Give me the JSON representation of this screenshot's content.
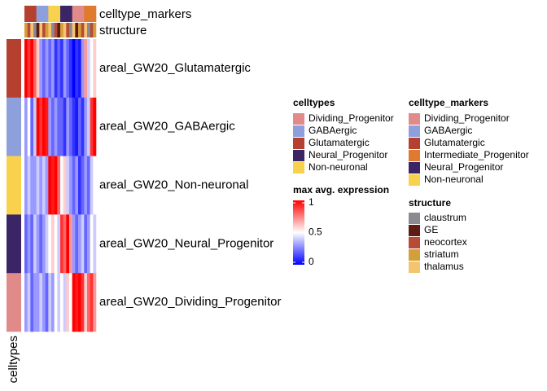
{
  "chart_data": {
    "type": "heatmap",
    "rows": [
      "areal_GW20_Glutamatergic",
      "areal_GW20_GABAergic",
      "areal_GW20_Non-neuronal",
      "areal_GW20_Neural_Progenitor",
      "areal_GW20_Dividing_Progenitor"
    ],
    "row_celltype_index": [
      2,
      1,
      4,
      3,
      0
    ],
    "row_annotation_title": "celltypes",
    "top_annotations": [
      "celltype_markers",
      "structure"
    ],
    "column_marker_index": [
      2,
      2,
      2,
      2,
      1,
      1,
      1,
      1,
      5,
      5,
      5,
      5,
      4,
      4,
      4,
      4,
      0,
      0,
      0,
      0,
      3,
      3,
      3,
      3
    ],
    "column_structure_index": [
      3,
      2,
      4,
      0,
      1,
      4,
      2,
      3,
      4,
      0,
      2,
      1,
      3,
      4,
      2,
      0,
      4,
      1,
      3,
      2,
      4,
      0,
      2,
      3
    ],
    "values": [
      [
        1,
        0.9,
        1,
        0.8,
        0.6,
        0.3,
        0.2,
        0.3,
        0.2,
        0.3,
        0.1,
        0.2,
        0.1,
        0.3,
        0.2,
        0.1,
        0,
        0.1,
        0.05,
        0.3,
        0.7,
        0.4,
        0.5,
        0.6
      ],
      [
        0.3,
        0.5,
        0.2,
        0.4,
        1,
        0.9,
        1,
        0.95,
        0.3,
        0.2,
        0.3,
        0.2,
        0.2,
        0.1,
        0.3,
        0.2,
        0.1,
        0.05,
        0.2,
        0.1,
        0.3,
        0.4,
        0.9,
        1
      ],
      [
        0.3,
        0.4,
        0.3,
        0.3,
        0.4,
        0.3,
        0.4,
        0.3,
        1,
        0.95,
        1,
        0.8,
        0.5,
        0.6,
        0.4,
        0.3,
        0.2,
        0.3,
        0.1,
        0.2,
        0.3,
        0.2,
        0.4,
        0.5
      ],
      [
        0.2,
        0.3,
        0.2,
        0.4,
        0.3,
        0.2,
        0.3,
        0.4,
        0.5,
        0.6,
        0.5,
        0.4,
        0.9,
        0.8,
        1,
        0.7,
        0.3,
        0.2,
        0.3,
        0.4,
        0.2,
        0.3,
        0.5,
        0.4
      ],
      [
        0.3,
        0.4,
        0.2,
        0.3,
        0.3,
        0.4,
        0.3,
        0.2,
        0.4,
        0.3,
        0.5,
        0.4,
        0.5,
        0.4,
        0.6,
        0.5,
        1,
        0.95,
        1,
        0.9,
        0.6,
        0.8,
        0.9,
        0.7
      ]
    ],
    "legends": {
      "celltypes": {
        "title": "celltypes",
        "labels": [
          "Dividing_Progenitor",
          "GABAergic",
          "Glutamatergic",
          "Neural_Progenitor",
          "Non-neuronal"
        ],
        "colors": [
          "#e08a8a",
          "#8da0dc",
          "#b5402f",
          "#3a2567",
          "#f8d24c"
        ]
      },
      "markers": {
        "title": "celltype_markers",
        "labels": [
          "Dividing_Progenitor",
          "GABAergic",
          "Glutamatergic",
          "Intermediate_Progenitor",
          "Neural_Progenitor",
          "Non-neuronal"
        ],
        "colors": [
          "#e08a8a",
          "#8da0dc",
          "#b5402f",
          "#e07a2e",
          "#3a2567",
          "#f8d24c"
        ]
      },
      "structure": {
        "title": "structure",
        "labels": [
          "claustrum",
          "GE",
          "neocortex",
          "striatum",
          "thalamus"
        ],
        "colors": [
          "#8c8a91",
          "#5e1b14",
          "#b84a38",
          "#d49f3a",
          "#f5c46e"
        ]
      }
    },
    "colorbar_title": "max avg. expression",
    "lim": [
      0,
      1
    ],
    "ticks": [
      0,
      0.5,
      1
    ],
    "colors": {
      "low": "#0000ff",
      "mid": "#ffffff",
      "high": "#ff0000"
    }
  }
}
